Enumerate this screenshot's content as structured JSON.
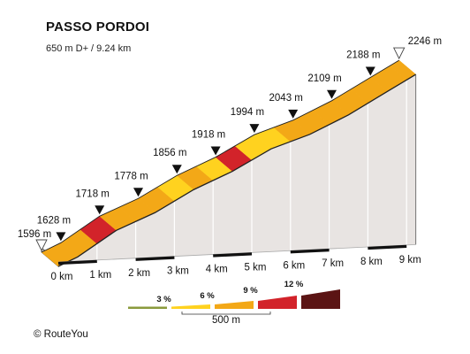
{
  "title": "PASSO PORDOI",
  "subtitle": "650 m D+ / 9.24 km",
  "credit": "© RouteYou",
  "chart_data": {
    "type": "area",
    "x_unit": "km",
    "y_unit": "m",
    "xlim": [
      0,
      9.24
    ],
    "x_ticks": [
      {
        "value": 0,
        "label": "0 km"
      },
      {
        "value": 1,
        "label": "1 km"
      },
      {
        "value": 2,
        "label": "2 km"
      },
      {
        "value": 3,
        "label": "3 km"
      },
      {
        "value": 4,
        "label": "4 km"
      },
      {
        "value": 5,
        "label": "5 km"
      },
      {
        "value": 6,
        "label": "6 km"
      },
      {
        "value": 7,
        "label": "7 km"
      },
      {
        "value": 8,
        "label": "8 km"
      },
      {
        "value": 9,
        "label": "9 km"
      }
    ],
    "start": {
      "km": 0,
      "elevation": 1596,
      "label": "1596 m"
    },
    "end": {
      "km": 9.24,
      "elevation": 2246,
      "label": "2246 m"
    },
    "km_markers": [
      {
        "km": 0.5,
        "elevation": 1628,
        "label": "1628 m"
      },
      {
        "km": 1.5,
        "elevation": 1718,
        "label": "1718 m"
      },
      {
        "km": 2.5,
        "elevation": 1778,
        "label": "1778 m"
      },
      {
        "km": 3.5,
        "elevation": 1856,
        "label": "1856 m"
      },
      {
        "km": 4.5,
        "elevation": 1918,
        "label": "1918 m"
      },
      {
        "km": 5.5,
        "elevation": 1994,
        "label": "1994 m"
      },
      {
        "km": 6.5,
        "elevation": 2043,
        "label": "2043 m"
      },
      {
        "km": 7.5,
        "elevation": 2109,
        "label": "2109 m"
      },
      {
        "km": 8.5,
        "elevation": 2188,
        "label": "2188 m"
      }
    ],
    "segments": [
      {
        "from_km": 0,
        "to_km": 0.5,
        "class": "6-9"
      },
      {
        "from_km": 0.5,
        "to_km": 1.0,
        "class": "6-9"
      },
      {
        "from_km": 1.0,
        "to_km": 1.5,
        "class": "9-12"
      },
      {
        "from_km": 1.5,
        "to_km": 2.0,
        "class": "6-9"
      },
      {
        "from_km": 2.0,
        "to_km": 2.5,
        "class": "6-9"
      },
      {
        "from_km": 2.5,
        "to_km": 3.0,
        "class": "6-9"
      },
      {
        "from_km": 3.0,
        "to_km": 3.5,
        "class": "3-6"
      },
      {
        "from_km": 3.5,
        "to_km": 4.0,
        "class": "6-9"
      },
      {
        "from_km": 4.0,
        "to_km": 4.5,
        "class": "3-6"
      },
      {
        "from_km": 4.5,
        "to_km": 5.0,
        "class": "9-12"
      },
      {
        "from_km": 5.0,
        "to_km": 5.5,
        "class": "3-6"
      },
      {
        "from_km": 5.5,
        "to_km": 6.0,
        "class": "3-6"
      },
      {
        "from_km": 6.0,
        "to_km": 6.5,
        "class": "6-9"
      },
      {
        "from_km": 6.5,
        "to_km": 7.0,
        "class": "6-9"
      },
      {
        "from_km": 7.0,
        "to_km": 7.5,
        "class": "6-9"
      },
      {
        "from_km": 7.5,
        "to_km": 8.0,
        "class": "6-9"
      },
      {
        "from_km": 8.0,
        "to_km": 8.5,
        "class": "6-9"
      },
      {
        "from_km": 8.5,
        "to_km": 9.0,
        "class": "6-9"
      },
      {
        "from_km": 9.0,
        "to_km": 9.24,
        "class": "6-9"
      }
    ],
    "legend": {
      "placement": "bottom-center",
      "labels": [
        "3 %",
        "6 %",
        "9 %",
        "12 %"
      ],
      "scale_label": "500 m",
      "colors": {
        "0-3": "#8a9a3c",
        "3-6": "#ffd21f",
        "6-9": "#f3a817",
        "9-12": "#d2232a",
        "12+": "#5b1414"
      }
    },
    "colors": {
      "wall": "#e8e4e2",
      "side": "#c8c4c2",
      "outline": "#333333",
      "ridge": "#222222"
    }
  }
}
